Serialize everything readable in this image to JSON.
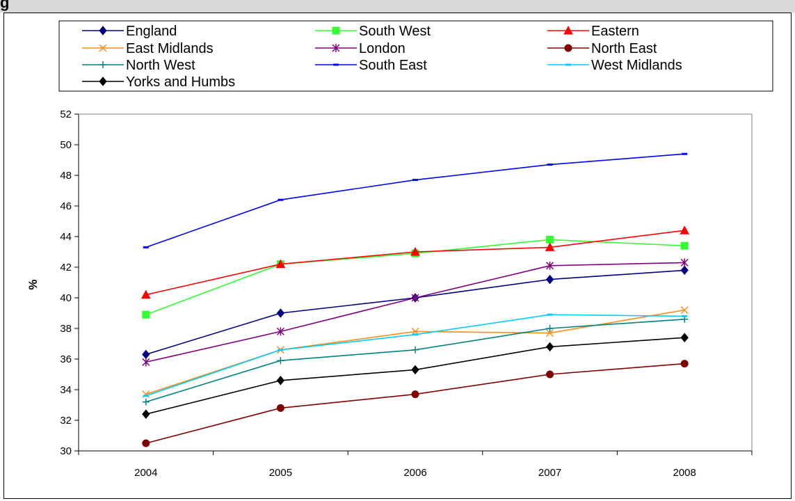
{
  "title": "g",
  "chart_data": {
    "type": "line",
    "title": "",
    "xlabel": "",
    "ylabel": "%",
    "x": [
      "2004",
      "2005",
      "2006",
      "2007",
      "2008"
    ],
    "ylim": [
      30,
      52
    ],
    "yticks": [
      30,
      32,
      34,
      36,
      38,
      40,
      42,
      44,
      46,
      48,
      50,
      52
    ],
    "grid": false,
    "legend_position": "top",
    "series": [
      {
        "name": "England",
        "color": "#000080",
        "marker": "diamond",
        "values": [
          36.3,
          39.0,
          40.0,
          41.2,
          41.8
        ]
      },
      {
        "name": "South West",
        "color": "#33ff33",
        "marker": "square",
        "values": [
          38.9,
          42.2,
          42.9,
          43.8,
          43.4
        ]
      },
      {
        "name": "Eastern",
        "color": "#ff0000",
        "marker": "triangle",
        "values": [
          40.2,
          42.2,
          43.0,
          43.3,
          44.4
        ]
      },
      {
        "name": "East Midlands",
        "color": "#ff8c1a",
        "marker": "x",
        "values": [
          33.7,
          36.6,
          37.8,
          37.7,
          39.2
        ]
      },
      {
        "name": "London",
        "color": "#800080",
        "marker": "star",
        "values": [
          35.8,
          37.8,
          40.0,
          42.1,
          42.3
        ]
      },
      {
        "name": "North East",
        "color": "#800000",
        "marker": "circle",
        "values": [
          30.5,
          32.8,
          33.7,
          35.0,
          35.7
        ]
      },
      {
        "name": "North West",
        "color": "#008080",
        "marker": "plus",
        "values": [
          33.2,
          35.9,
          36.6,
          38.0,
          38.6
        ]
      },
      {
        "name": "South East",
        "color": "#0000ff",
        "marker": "dash",
        "values": [
          43.3,
          46.4,
          47.7,
          48.7,
          49.4
        ]
      },
      {
        "name": "West Midlands",
        "color": "#00ccff",
        "marker": "dash",
        "values": [
          33.6,
          36.6,
          37.6,
          38.9,
          38.8
        ]
      },
      {
        "name": "Yorks and Humbs",
        "color": "#000000",
        "marker": "diamond",
        "values": [
          32.4,
          34.6,
          35.3,
          36.8,
          37.4
        ]
      }
    ]
  }
}
